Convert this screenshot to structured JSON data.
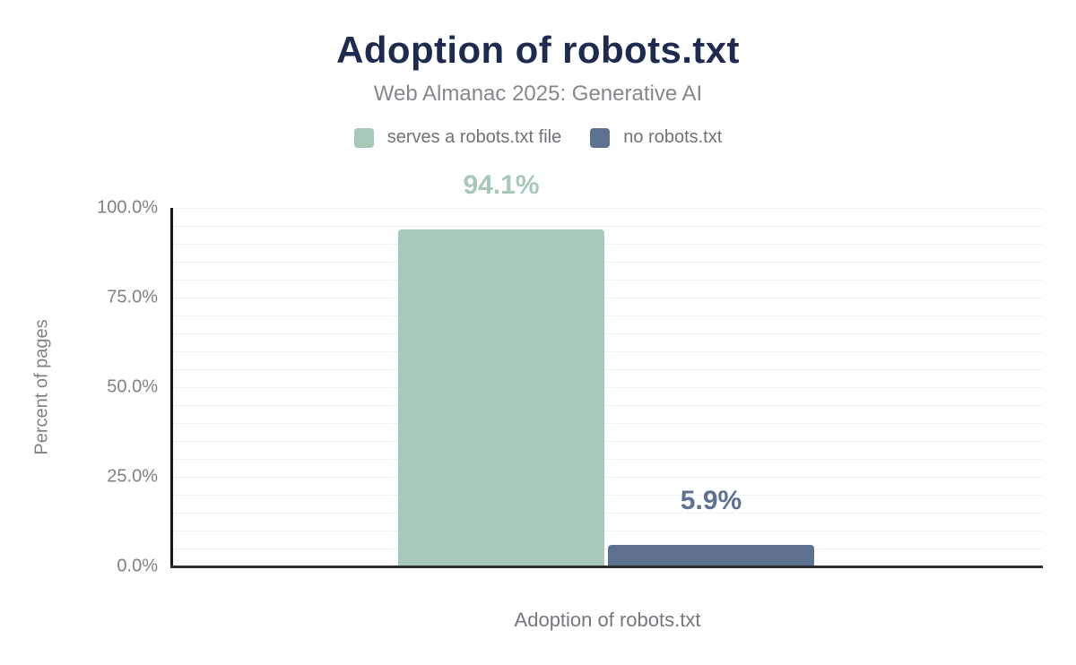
{
  "chart_data": {
    "type": "bar",
    "title": "Adoption of robots.txt",
    "subtitle": "Web Almanac 2025: Generative AI",
    "categories": [
      "Adoption of robots.txt"
    ],
    "series": [
      {
        "name": "serves a robots.txt file",
        "values": [
          94.1
        ],
        "data_label": "94.1%",
        "color": "#a8c9b8"
      },
      {
        "name": "no robots.txt",
        "values": [
          5.9
        ],
        "data_label": "5.9%",
        "color": "#5f7190"
      }
    ],
    "xlabel": "Adoption of robots.txt",
    "ylabel": "Percent of pages",
    "ylim": [
      0,
      100
    ],
    "yticks": [
      "0.0%",
      "25.0%",
      "50.0%",
      "75.0%",
      "100.0%"
    ],
    "grid": {
      "horizontal": true,
      "step_percent": 5,
      "color": "#f2f2f2"
    },
    "legend_position": "top",
    "colors": {
      "title": "#1e2b4e",
      "subtitle_text": "#85888c",
      "axis_text": "#7f8285",
      "axis_line": "#161616"
    }
  }
}
